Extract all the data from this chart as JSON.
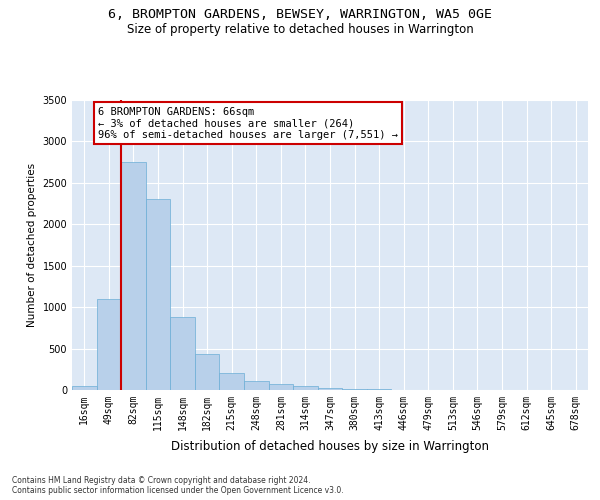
{
  "title": "6, BROMPTON GARDENS, BEWSEY, WARRINGTON, WA5 0GE",
  "subtitle": "Size of property relative to detached houses in Warrington",
  "xlabel": "Distribution of detached houses by size in Warrington",
  "ylabel": "Number of detached properties",
  "categories": [
    "16sqm",
    "49sqm",
    "82sqm",
    "115sqm",
    "148sqm",
    "182sqm",
    "215sqm",
    "248sqm",
    "281sqm",
    "314sqm",
    "347sqm",
    "380sqm",
    "413sqm",
    "446sqm",
    "479sqm",
    "513sqm",
    "546sqm",
    "579sqm",
    "612sqm",
    "645sqm",
    "678sqm"
  ],
  "values": [
    50,
    1100,
    2750,
    2300,
    880,
    430,
    200,
    105,
    70,
    45,
    25,
    15,
    10,
    5,
    5,
    3,
    2,
    1,
    1,
    0,
    0
  ],
  "bar_color": "#b8d0ea",
  "bar_edgecolor": "#6aaed6",
  "annotation_text_line1": "6 BROMPTON GARDENS: 66sqm",
  "annotation_text_line2": "← 3% of detached houses are smaller (264)",
  "annotation_text_line3": "96% of semi-detached houses are larger (7,551) →",
  "annotation_box_color": "#ffffff",
  "annotation_border_color": "#cc0000",
  "vline_color": "#cc0000",
  "vline_x": 1.5,
  "ylim": [
    0,
    3500
  ],
  "yticks": [
    0,
    500,
    1000,
    1500,
    2000,
    2500,
    3000,
    3500
  ],
  "background_color": "#dde8f5",
  "grid_color": "#ffffff",
  "footer_line1": "Contains HM Land Registry data © Crown copyright and database right 2024.",
  "footer_line2": "Contains public sector information licensed under the Open Government Licence v3.0."
}
